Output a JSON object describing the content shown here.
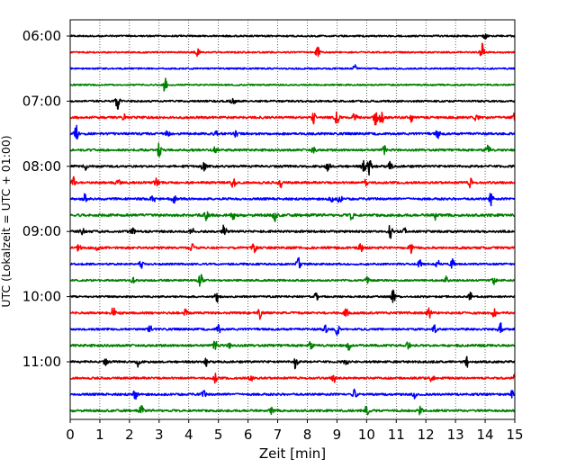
{
  "chart_data": {
    "type": "line",
    "title": "",
    "xlabel": "Zeit  [min]",
    "ylabel": "UTC (Lokalzeit = UTC + 01:00)",
    "xlim": [
      0,
      15
    ],
    "x_ticks": [
      "0",
      "1",
      "2",
      "3",
      "4",
      "5",
      "6",
      "7",
      "8",
      "9",
      "10",
      "11",
      "12",
      "13",
      "14",
      "15"
    ],
    "y_ticks": [
      {
        "label": "06:00",
        "row": 0
      },
      {
        "label": "07:00",
        "row": 4
      },
      {
        "label": "08:00",
        "row": 8
      },
      {
        "label": "09:00",
        "row": 12
      },
      {
        "label": "10:00",
        "row": 16
      },
      {
        "label": "11:00",
        "row": 20
      }
    ],
    "vertical_grid": "dotted",
    "trace_minutes_each": 15,
    "trace_start_times": [
      "06:00",
      "06:15",
      "06:30",
      "06:45",
      "07:00",
      "07:15",
      "07:30",
      "07:45",
      "08:00",
      "08:15",
      "08:30",
      "08:45",
      "09:00",
      "09:15",
      "09:30",
      "09:45",
      "10:00",
      "10:15",
      "10:30",
      "10:45",
      "11:00",
      "11:15",
      "11:30",
      "11:45"
    ],
    "trace_colors": [
      "#000000",
      "#ff0000",
      "#0000ff",
      "#008000"
    ],
    "traces": [
      {
        "noise": 0.9,
        "events": [
          [
            14.0,
            3
          ]
        ]
      },
      {
        "noise": 0.8,
        "events": [
          [
            4.3,
            4
          ],
          [
            8.35,
            9
          ],
          [
            13.9,
            10
          ]
        ]
      },
      {
        "noise": 0.8,
        "events": [
          [
            9.6,
            4
          ]
        ]
      },
      {
        "noise": 0.8,
        "events": [
          [
            3.2,
            8
          ]
        ]
      },
      {
        "noise": 1.0,
        "events": [
          [
            1.6,
            9
          ],
          [
            5.5,
            4
          ]
        ]
      },
      {
        "noise": 1.2,
        "events": [
          [
            1.8,
            4
          ],
          [
            8.2,
            7
          ],
          [
            9.0,
            7
          ],
          [
            9.6,
            6
          ],
          [
            10.3,
            8
          ],
          [
            10.5,
            8
          ],
          [
            11.5,
            5
          ],
          [
            13.7,
            5
          ],
          [
            15.0,
            6
          ]
        ]
      },
      {
        "noise": 1.2,
        "events": [
          [
            0.2,
            11
          ],
          [
            3.3,
            4
          ],
          [
            4.9,
            4
          ],
          [
            5.6,
            4
          ],
          [
            12.4,
            5
          ]
        ]
      },
      {
        "noise": 1.2,
        "events": [
          [
            3.0,
            7
          ],
          [
            4.9,
            4
          ],
          [
            8.2,
            4
          ],
          [
            10.6,
            4
          ],
          [
            14.1,
            6
          ]
        ]
      },
      {
        "noise": 1.2,
        "events": [
          [
            0.5,
            4
          ],
          [
            4.5,
            6
          ],
          [
            8.7,
            5
          ],
          [
            9.9,
            6
          ],
          [
            10.1,
            11
          ],
          [
            10.8,
            5
          ]
        ]
      },
      {
        "noise": 1.2,
        "events": [
          [
            0.1,
            6
          ],
          [
            1.6,
            4
          ],
          [
            2.9,
            4
          ],
          [
            5.5,
            6
          ],
          [
            7.1,
            5
          ],
          [
            10.0,
            5
          ],
          [
            13.5,
            5
          ]
        ]
      },
      {
        "noise": 1.2,
        "events": [
          [
            0.5,
            6
          ],
          [
            2.8,
            4
          ],
          [
            3.5,
            4
          ],
          [
            8.8,
            5
          ],
          [
            9.1,
            5
          ],
          [
            14.2,
            7
          ]
        ]
      },
      {
        "noise": 1.4,
        "events": [
          [
            4.6,
            5
          ],
          [
            5.5,
            5
          ],
          [
            6.9,
            6
          ],
          [
            9.5,
            5
          ],
          [
            12.3,
            5
          ]
        ]
      },
      {
        "noise": 1.2,
        "events": [
          [
            0.4,
            4
          ],
          [
            2.1,
            4
          ],
          [
            4.1,
            4
          ],
          [
            5.2,
            8
          ],
          [
            10.8,
            7
          ],
          [
            11.3,
            4
          ]
        ]
      },
      {
        "noise": 1.2,
        "events": [
          [
            0.3,
            5
          ],
          [
            0.9,
            4
          ],
          [
            4.1,
            4
          ],
          [
            6.2,
            5
          ],
          [
            9.8,
            4
          ],
          [
            11.5,
            5
          ]
        ]
      },
      {
        "noise": 1.0,
        "events": [
          [
            2.4,
            4
          ],
          [
            7.7,
            7
          ],
          [
            11.8,
            4
          ],
          [
            12.4,
            4
          ],
          [
            12.9,
            5
          ]
        ]
      },
      {
        "noise": 1.0,
        "events": [
          [
            2.1,
            4
          ],
          [
            4.4,
            8
          ],
          [
            10.0,
            5
          ],
          [
            12.7,
            4
          ],
          [
            14.3,
            4
          ]
        ]
      },
      {
        "noise": 1.0,
        "events": [
          [
            4.95,
            6
          ],
          [
            8.3,
            5
          ],
          [
            10.9,
            7
          ],
          [
            13.5,
            4
          ]
        ]
      },
      {
        "noise": 1.2,
        "events": [
          [
            1.45,
            6
          ],
          [
            3.9,
            4
          ],
          [
            6.4,
            6
          ],
          [
            9.3,
            5
          ],
          [
            12.1,
            7
          ],
          [
            14.3,
            5
          ]
        ]
      },
      {
        "noise": 1.1,
        "events": [
          [
            2.7,
            4
          ],
          [
            5.0,
            5
          ],
          [
            8.6,
            6
          ],
          [
            9.0,
            7
          ],
          [
            12.3,
            4
          ],
          [
            14.5,
            8
          ]
        ]
      },
      {
        "noise": 1.3,
        "events": [
          [
            4.9,
            6
          ],
          [
            5.4,
            4
          ],
          [
            8.1,
            4
          ],
          [
            9.4,
            4
          ],
          [
            11.4,
            4
          ]
        ]
      },
      {
        "noise": 1.1,
        "events": [
          [
            1.2,
            4
          ],
          [
            2.3,
            6
          ],
          [
            4.6,
            4
          ],
          [
            7.6,
            9
          ],
          [
            9.3,
            4
          ],
          [
            13.4,
            6
          ]
        ]
      },
      {
        "noise": 1.1,
        "events": [
          [
            4.9,
            5
          ],
          [
            6.1,
            4
          ],
          [
            8.9,
            4
          ],
          [
            12.2,
            5
          ],
          [
            15.0,
            4
          ]
        ]
      },
      {
        "noise": 1.2,
        "events": [
          [
            2.2,
            6
          ],
          [
            4.5,
            4
          ],
          [
            9.6,
            5
          ],
          [
            11.6,
            4
          ],
          [
            14.9,
            4
          ]
        ]
      },
      {
        "noise": 1.2,
        "events": [
          [
            2.4,
            5
          ],
          [
            6.8,
            4
          ],
          [
            10.0,
            5
          ],
          [
            11.8,
            4
          ]
        ]
      }
    ]
  }
}
